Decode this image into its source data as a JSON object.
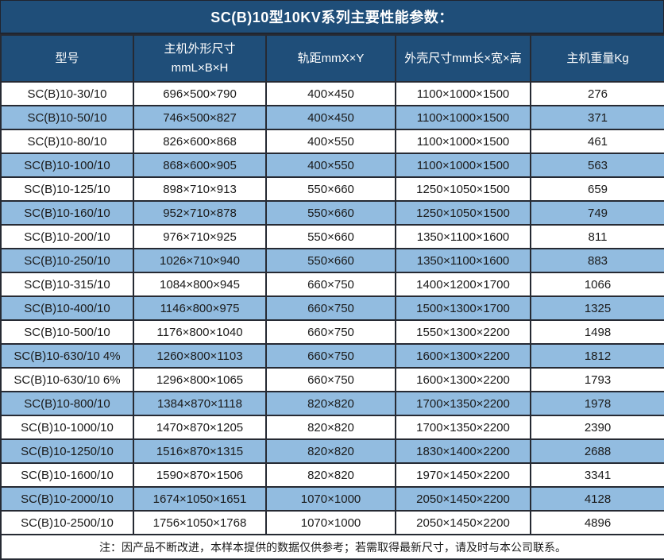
{
  "title": "SC(B)10型10KV系列主要性能参数：",
  "colors": {
    "header_bg": "#1f4e79",
    "stripe_row_bg": "#92bce0",
    "border": "#262a33",
    "header_text": "#ffffff",
    "body_text": "#1a1a1a"
  },
  "table": {
    "headers": [
      "型号",
      "主机外形尺寸\nmmL×B×H",
      "轨距mmX×Y",
      "外壳尺寸mm长×宽×高",
      "主机重量Kg"
    ],
    "rows": [
      [
        "SC(B)10-30/10",
        "696×500×790",
        "400×450",
        "1100×1000×1500",
        "276"
      ],
      [
        "SC(B)10-50/10",
        "746×500×827",
        "400×450",
        "1100×1000×1500",
        "371"
      ],
      [
        "SC(B)10-80/10",
        "826×600×868",
        "400×550",
        "1100×1000×1500",
        "461"
      ],
      [
        "SC(B)10-100/10",
        "868×600×905",
        "400×550",
        "1100×1000×1500",
        "563"
      ],
      [
        "SC(B)10-125/10",
        "898×710×913",
        "550×660",
        "1250×1050×1500",
        "659"
      ],
      [
        "SC(B)10-160/10",
        "952×710×878",
        "550×660",
        "1250×1050×1500",
        "749"
      ],
      [
        "SC(B)10-200/10",
        "976×710×925",
        "550×660",
        "1350×1100×1600",
        "811"
      ],
      [
        "SC(B)10-250/10",
        "1026×710×940",
        "550×660",
        "1350×1100×1600",
        "883"
      ],
      [
        "SC(B)10-315/10",
        "1084×800×945",
        "660×750",
        "1400×1200×1700",
        "1066"
      ],
      [
        "SC(B)10-400/10",
        "1146×800×975",
        "660×750",
        "1500×1300×1700",
        "1325"
      ],
      [
        "SC(B)10-500/10",
        "1176×800×1040",
        "660×750",
        "1550×1300×2200",
        "1498"
      ],
      [
        "SC(B)10-630/10 4%",
        "1260×800×1103",
        "660×750",
        "1600×1300×2200",
        "1812"
      ],
      [
        "SC(B)10-630/10 6%",
        "1296×800×1065",
        "660×750",
        "1600×1300×2200",
        "1793"
      ],
      [
        "SC(B)10-800/10",
        "1384×870×1118",
        "820×820",
        "1700×1350×2200",
        "1978"
      ],
      [
        "SC(B)10-1000/10",
        "1470×870×1205",
        "820×820",
        "1700×1350×2200",
        "2390"
      ],
      [
        "SC(B)10-1250/10",
        "1516×870×1315",
        "820×820",
        "1830×1400×2200",
        "2688"
      ],
      [
        "SC(B)10-1600/10",
        "1590×870×1506",
        "820×820",
        "1970×1450×2200",
        "3341"
      ],
      [
        "SC(B)10-2000/10",
        "1674×1050×1651",
        "1070×1000",
        "2050×1450×2200",
        "4128"
      ],
      [
        "SC(B)10-2500/10",
        "1756×1050×1768",
        "1070×1000",
        "2050×1450×2200",
        "4896"
      ]
    ],
    "footer_note": "注：因产品不断改进，本样本提供的数据仅供参考；若需取得最新尺寸，请及时与本公司联系。"
  }
}
